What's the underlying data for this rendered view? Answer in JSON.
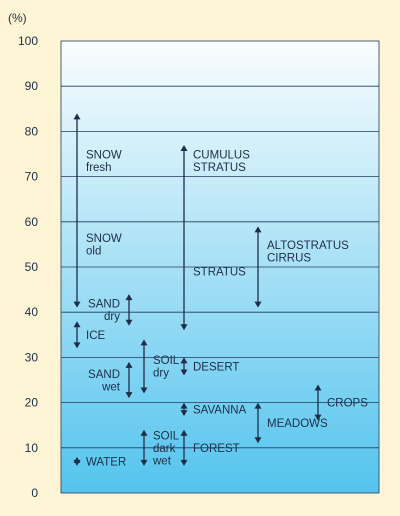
{
  "chart_data": {
    "type": "range",
    "unit_label": "(%)",
    "ylim": [
      0,
      100
    ],
    "yticks": [
      0,
      10,
      20,
      30,
      40,
      50,
      60,
      70,
      80,
      90,
      100
    ],
    "grid": true,
    "colors": {
      "background": "#fdf5d6",
      "plot_top": "#fafdfe",
      "plot_bottom": "#54c4ee",
      "ink": "#1e2e48"
    },
    "items": [
      {
        "id": "snow-fresh",
        "lines": [
          "SNOW",
          "fresh"
        ],
        "low": 41,
        "high": 84,
        "column": 1,
        "label_align": "start"
      },
      {
        "id": "snow-old",
        "lines": [
          "SNOW",
          "old"
        ],
        "column": 1,
        "label_only": true,
        "label_y": 55,
        "label_align": "start"
      },
      {
        "id": "sand-dry",
        "lines": [
          "SAND",
          "dry"
        ],
        "low": 37,
        "high": 44,
        "column": 2,
        "label_align": "end"
      },
      {
        "id": "ice",
        "lines": [
          "ICE"
        ],
        "low": 32,
        "high": 38,
        "column": 0,
        "label_align": "start"
      },
      {
        "id": "sand-wet",
        "lines": [
          "SAND",
          "wet"
        ],
        "low": 21,
        "high": 29,
        "column": 2,
        "label_align": "end"
      },
      {
        "id": "soil-dry",
        "lines": [
          "SOIL",
          "dry"
        ],
        "low": 22,
        "high": 34,
        "column": 3,
        "label_align": "start"
      },
      {
        "id": "water",
        "lines": [
          "WATER"
        ],
        "low": 6,
        "high": 8,
        "column": 0,
        "label_align": "start"
      },
      {
        "id": "soil-dark-wet",
        "lines": [
          "SOIL",
          "dark",
          "wet"
        ],
        "low": 6,
        "high": 14,
        "column": 3,
        "label_align": "start"
      },
      {
        "id": "cumulus-stratus",
        "lines": [
          "CUMULUS",
          "STRATUS"
        ],
        "low": 36,
        "high": 77,
        "column": 4,
        "label_align": "start"
      },
      {
        "id": "stratus",
        "lines": [
          "STRATUS"
        ],
        "column": 4,
        "label_only": true,
        "label_y": 49,
        "label_align": "start"
      },
      {
        "id": "desert",
        "lines": [
          "DESERT"
        ],
        "low": 26,
        "high": 30,
        "column": 4,
        "label_align": "start"
      },
      {
        "id": "savanna",
        "lines": [
          "SAVANNA"
        ],
        "low": 17,
        "high": 20,
        "column": 4,
        "label_align": "start"
      },
      {
        "id": "forest",
        "lines": [
          "FOREST"
        ],
        "low": 6,
        "high": 14,
        "column": 4,
        "label_align": "start"
      },
      {
        "id": "altostratus-cirrus",
        "lines": [
          "ALTOSTRATUS",
          "CIRRUS"
        ],
        "low": 41,
        "high": 59,
        "column": 5,
        "label_align": "start"
      },
      {
        "id": "meadows",
        "lines": [
          "MEADOWS"
        ],
        "low": 11,
        "high": 20,
        "column": 5,
        "label_align": "start"
      },
      {
        "id": "crops",
        "lines": [
          "CROPS"
        ],
        "low": 16,
        "high": 24,
        "column": 6,
        "label_align": "start"
      }
    ]
  }
}
